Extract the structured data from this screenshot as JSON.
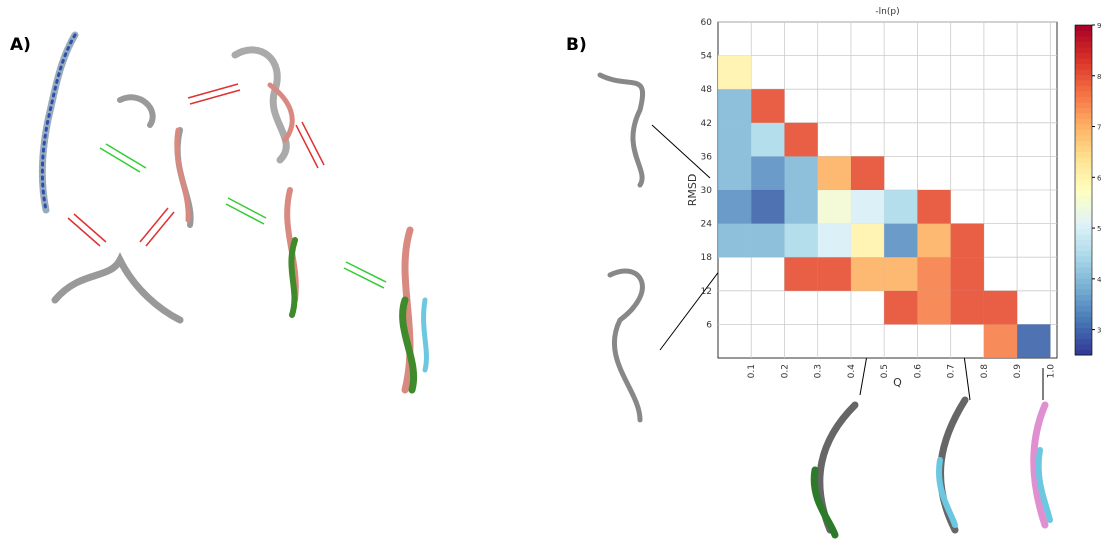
{
  "panel_labels": [
    "A)",
    "B)"
  ],
  "chart_data": {
    "type": "heatmap",
    "title": "-ln(p)",
    "x_label": "Q",
    "y_label": "RMSD",
    "x_bins": [
      0,
      0.1,
      0.2,
      0.3,
      0.4,
      0.5,
      0.6,
      0.7,
      0.8,
      0.9,
      1.0
    ],
    "y_bins": [
      0,
      6,
      12,
      18,
      24,
      30,
      36,
      42,
      48,
      54,
      60
    ],
    "z": [
      [
        null,
        null,
        null,
        null,
        null,
        null,
        null,
        null,
        7.5,
        3
      ],
      [
        null,
        null,
        null,
        null,
        null,
        8,
        7.5,
        8,
        8,
        null
      ],
      [
        null,
        null,
        8,
        8,
        7,
        7,
        7.5,
        8,
        null,
        null
      ],
      [
        4,
        4,
        4.5,
        5,
        6,
        3.5,
        7,
        8,
        null,
        null
      ],
      [
        3.5,
        3,
        4,
        5.5,
        5,
        4.5,
        8,
        null,
        null,
        null
      ],
      [
        4,
        3.5,
        4,
        7,
        8,
        null,
        null,
        null,
        null,
        null
      ],
      [
        4,
        4.5,
        8,
        null,
        null,
        null,
        null,
        null,
        null,
        null
      ],
      [
        4,
        8,
        null,
        null,
        null,
        null,
        null,
        null,
        null,
        null
      ],
      [
        6,
        null,
        null,
        null,
        null,
        null,
        null,
        null,
        null,
        null
      ],
      [
        null,
        null,
        null,
        null,
        null,
        null,
        null,
        null,
        null,
        null
      ]
    ],
    "xlim": [
      0,
      1.02
    ],
    "ylim": [
      0,
      60
    ],
    "xticks": [
      0.1,
      0.2,
      0.3,
      0.4,
      0.5,
      0.6,
      0.7,
      0.8,
      0.9,
      {
        "value": 1,
        "label": "1.0"
      }
    ],
    "yticks": [
      6,
      12,
      18,
      24,
      30,
      36,
      42,
      48,
      54,
      60
    ],
    "colorbar_lim": [
      2.5,
      9
    ],
    "colorbar_ticks": [
      3,
      4,
      5,
      6,
      7,
      8,
      9
    ],
    "colormap": [
      "#313695",
      "#4575b4",
      "#74add1",
      "#abd9e9",
      "#e0f3f8",
      "#ffffbf",
      "#fee090",
      "#fdae61",
      "#f46d43",
      "#d73027",
      "#a50026"
    ],
    "grid": true
  }
}
